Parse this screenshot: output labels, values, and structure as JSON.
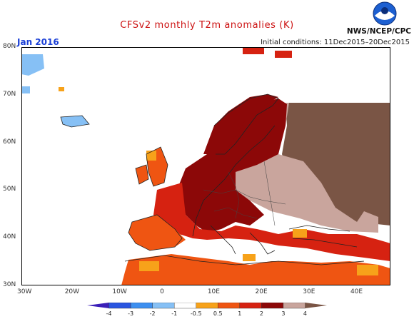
{
  "header": {
    "title": "CFSv2 monthly T2m anomalies (K)",
    "month": "Jan 2016",
    "agency": "NWS/NCEP/CPC",
    "initial_conditions": "Initial conditions: 11Dec2015–20Dec2015"
  },
  "map": {
    "lon_labels": [
      "30W",
      "20W",
      "10W",
      "0",
      "10E",
      "20E",
      "30E",
      "40E"
    ],
    "lat_labels": [
      "80N",
      "70N",
      "60N",
      "50N",
      "40N",
      "30N"
    ]
  },
  "legend": {
    "ticks": [
      "-4",
      "-3",
      "-2",
      "-1",
      "-0.5",
      "0.5",
      "1",
      "2",
      "3",
      "4"
    ],
    "colors": [
      "#3b1fb8",
      "#2a55e0",
      "#3d8ff0",
      "#86c0f5",
      "#ffffff",
      "#f7a21a",
      "#ef5512",
      "#d62211",
      "#8c0808",
      "#c9a59d",
      "#7a5545"
    ]
  }
}
